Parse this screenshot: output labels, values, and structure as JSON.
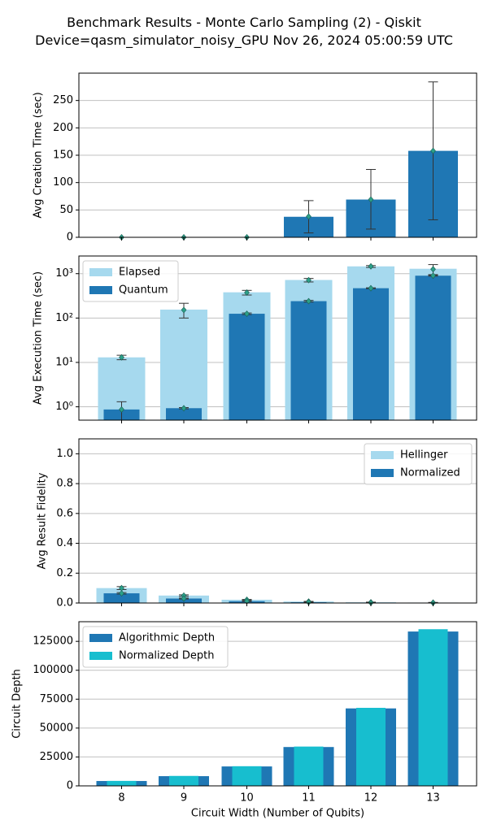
{
  "figure": {
    "title_line1": "Benchmark Results - Monte Carlo Sampling (2) - Qiskit",
    "title_line2": "Device=qasm_simulator_noisy_GPU  Nov 26, 2024 05:00:59 UTC"
  },
  "colors": {
    "dark_blue": "#1f77b4",
    "light_blue": "#a6d9ee",
    "cyan": "#17becf",
    "marker": "#2ca089",
    "errorbar": "#333333",
    "grid": "#c0c0c0"
  },
  "chart_data": [
    {
      "type": "bar",
      "ylabel": "Avg Creation Time (sec)",
      "categories": [
        "8",
        "9",
        "10",
        "11",
        "12",
        "13"
      ],
      "ylim": [
        0,
        300
      ],
      "yticks": [
        0,
        50,
        100,
        150,
        200,
        250
      ],
      "grid": true,
      "series": [
        {
          "values": [
            0.05,
            0.05,
            0.05,
            37.5,
            69,
            158
          ],
          "marker_values": [
            0.05,
            0.05,
            0.05,
            38,
            69,
            158
          ],
          "error_low": [
            0,
            0,
            0,
            8,
            15,
            32
          ],
          "error_high": [
            0,
            0,
            0,
            67,
            124,
            284
          ]
        }
      ]
    },
    {
      "type": "bar",
      "ylabel": "Avg Execution Time (sec)",
      "yscale": "log",
      "categories": [
        "8",
        "9",
        "10",
        "11",
        "12",
        "13"
      ],
      "ylim": [
        0.5,
        2500
      ],
      "yticks": [
        1,
        10,
        100,
        1000
      ],
      "ytick_labels": [
        "10⁰",
        "10¹",
        "10²",
        "10³"
      ],
      "grid": true,
      "legend_position": "upper-left",
      "series": [
        {
          "name": "Elapsed",
          "values": [
            13,
            155,
            380,
            720,
            1460,
            1290
          ],
          "marker_values": [
            13,
            152,
            375,
            715,
            1460,
            1260
          ],
          "error_low": [
            11.5,
            100,
            330,
            650,
            1380,
            950
          ],
          "error_high": [
            14.5,
            215,
            420,
            780,
            1520,
            1600
          ]
        },
        {
          "name": "Quantum",
          "values": [
            0.87,
            0.93,
            125,
            240,
            470,
            900
          ],
          "marker_values": [
            0.87,
            0.93,
            125,
            240,
            470,
            900
          ],
          "error_low": [
            0.5,
            0.9,
            120,
            230,
            460,
            880
          ],
          "error_high": [
            1.3,
            0.96,
            130,
            250,
            480,
            920
          ]
        }
      ]
    },
    {
      "type": "bar",
      "ylabel": "Avg Result Fidelity",
      "categories": [
        "8",
        "9",
        "10",
        "11",
        "12",
        "13"
      ],
      "ylim": [
        0,
        1.1
      ],
      "yticks": [
        0.0,
        0.2,
        0.4,
        0.6,
        0.8,
        1.0
      ],
      "ytick_labels": [
        "0.0",
        "0.2",
        "0.4",
        "0.6",
        "0.8",
        "1.0"
      ],
      "grid": true,
      "legend_position": "upper-right",
      "series": [
        {
          "name": "Hellinger",
          "values": [
            0.1,
            0.05,
            0.022,
            0.01,
            0.005,
            0.003
          ],
          "error_low": [
            0.09,
            0.045,
            0.02,
            0.009,
            0.004,
            0.002
          ],
          "error_high": [
            0.11,
            0.055,
            0.024,
            0.011,
            0.006,
            0.004
          ]
        },
        {
          "name": "Normalized",
          "values": [
            0.065,
            0.03,
            0.012,
            0.005,
            0.002,
            0.001
          ],
          "error_low": [
            0.06,
            0.027,
            0.01,
            0.004,
            0.0015,
            0.0005
          ],
          "error_high": [
            0.07,
            0.033,
            0.014,
            0.006,
            0.0025,
            0.0015
          ]
        }
      ]
    },
    {
      "type": "bar",
      "ylabel": "Circuit Depth",
      "xlabel": "Circuit Width (Number of Qubits)",
      "categories": [
        "8",
        "9",
        "10",
        "11",
        "12",
        "13"
      ],
      "ylim": [
        0,
        142000
      ],
      "yticks": [
        0,
        25000,
        50000,
        75000,
        100000,
        125000
      ],
      "grid": true,
      "legend_position": "upper-left",
      "series": [
        {
          "name": "Algorithmic Depth",
          "values": [
            4200,
            8400,
            16800,
            33600,
            67000,
            133500
          ]
        },
        {
          "name": "Normalized Depth",
          "values": [
            4300,
            8600,
            17000,
            34000,
            67500,
            135500
          ]
        }
      ]
    }
  ]
}
